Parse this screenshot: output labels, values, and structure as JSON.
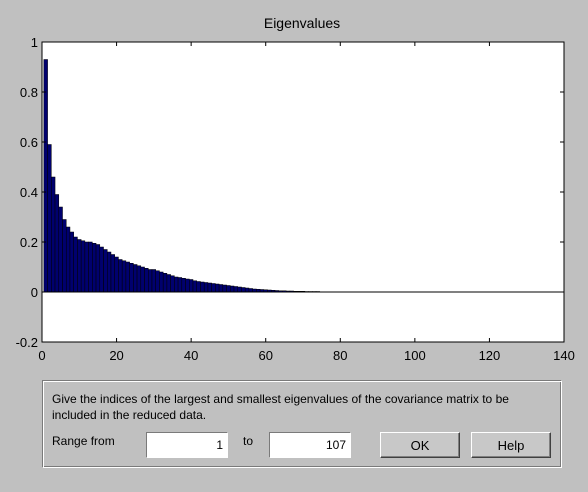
{
  "chart_data": {
    "type": "bar",
    "title": "Eigenvalues",
    "xlabel": "",
    "ylabel": "",
    "xlim": [
      0,
      140
    ],
    "ylim": [
      -0.2,
      1
    ],
    "xticks": [
      "0",
      "20",
      "40",
      "60",
      "80",
      "100",
      "120",
      "140"
    ],
    "yticks": [
      "-0.2",
      "0",
      "0.2",
      "0.4",
      "0.6",
      "0.8",
      "1"
    ],
    "bar_color": "#00006e",
    "x": [
      1,
      2,
      3,
      4,
      5,
      6,
      7,
      8,
      9,
      10,
      11,
      12,
      13,
      14,
      15,
      16,
      17,
      18,
      19,
      20,
      21,
      22,
      23,
      24,
      25,
      26,
      27,
      28,
      29,
      30,
      31,
      32,
      33,
      34,
      35,
      36,
      37,
      38,
      39,
      40,
      41,
      42,
      43,
      44,
      45,
      46,
      47,
      48,
      49,
      50,
      51,
      52,
      53,
      54,
      55,
      56,
      57,
      58,
      59,
      60,
      61,
      62,
      63,
      64,
      65,
      66,
      67,
      68,
      69,
      70,
      71,
      72,
      73,
      74,
      75,
      76,
      77,
      78,
      79,
      80,
      81,
      82,
      83,
      84,
      85,
      86,
      87,
      88,
      89,
      90,
      91,
      92,
      93,
      94,
      95,
      96,
      97,
      98,
      99,
      100,
      101,
      102,
      103,
      104,
      105,
      106,
      107
    ],
    "values": [
      0.93,
      0.59,
      0.46,
      0.39,
      0.34,
      0.29,
      0.26,
      0.24,
      0.22,
      0.21,
      0.205,
      0.2,
      0.2,
      0.195,
      0.19,
      0.18,
      0.17,
      0.16,
      0.15,
      0.14,
      0.13,
      0.125,
      0.12,
      0.115,
      0.11,
      0.105,
      0.1,
      0.095,
      0.09,
      0.09,
      0.085,
      0.08,
      0.075,
      0.07,
      0.065,
      0.06,
      0.058,
      0.055,
      0.052,
      0.05,
      0.045,
      0.042,
      0.04,
      0.038,
      0.036,
      0.034,
      0.032,
      0.03,
      0.028,
      0.026,
      0.024,
      0.022,
      0.02,
      0.018,
      0.016,
      0.014,
      0.012,
      0.011,
      0.01,
      0.009,
      0.008,
      0.007,
      0.006,
      0.005,
      0.005,
      0.004,
      0.004,
      0.003,
      0.003,
      0.003,
      0.002,
      0.002,
      0.002,
      0.002,
      0.001,
      0.001,
      0.001,
      0.001,
      0.001,
      0.001,
      0.0005,
      0.0005,
      0.0005,
      0.0005,
      0.0005,
      0.0005,
      0.0005,
      0.0005,
      0.0005,
      0.0005,
      0.0005,
      0.0005,
      0.0005,
      0.0005,
      0.0005,
      0.0005,
      0.0005,
      0.0005,
      0.0005,
      0.0005,
      0.0005,
      0.0005,
      0.0005,
      0.0005,
      0.0005,
      0.0005,
      0.0005
    ]
  },
  "dialog": {
    "prompt": "Give the indices of the largest and smallest eigenvalues of the covariance matrix to be included in the reduced data.",
    "range_from_label": "Range from",
    "to_label": "to",
    "range_from_value": "1",
    "range_to_value": "107",
    "ok_label": "OK",
    "help_label": "Help"
  }
}
